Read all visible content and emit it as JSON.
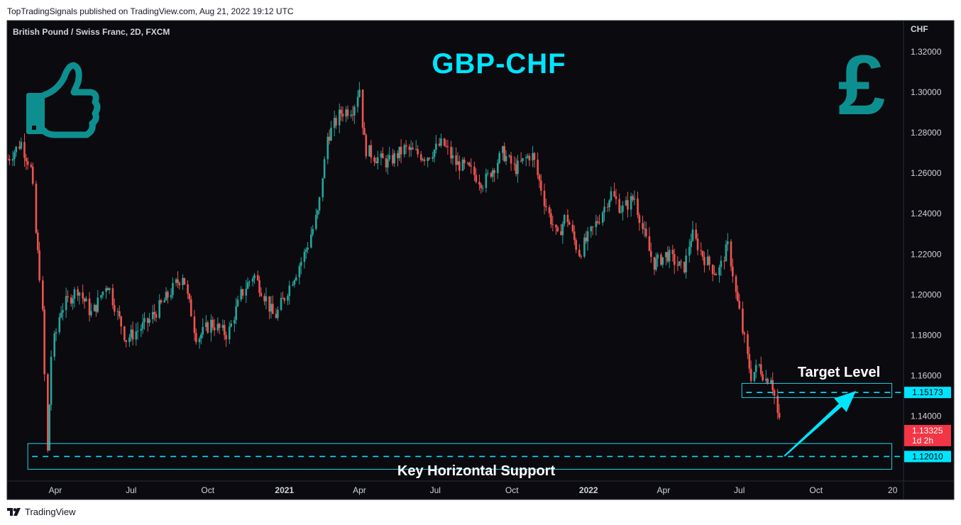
{
  "header": {
    "published": "TopTradingSignals published on TradingView.com, Aug 21, 2022 19:12 UTC"
  },
  "footer": {
    "brand": "TradingView"
  },
  "chart_data": {
    "type": "candlestick",
    "symbol": "British Pound / Swiss Franc, 2D, FXCM",
    "title": "GBP-CHF",
    "currency_axis": "CHF",
    "ylim": [
      1.108,
      1.335
    ],
    "y_ticks": [
      "1.32000",
      "1.30000",
      "1.28000",
      "1.26000",
      "1.24000",
      "1.22000",
      "1.20000",
      "1.18000",
      "1.16000",
      "1.14000"
    ],
    "x_ticks": [
      {
        "label": "Apr",
        "bold": false
      },
      {
        "label": "Jul",
        "bold": false
      },
      {
        "label": "Oct",
        "bold": false
      },
      {
        "label": "2021",
        "bold": true
      },
      {
        "label": "Apr",
        "bold": false
      },
      {
        "label": "Jul",
        "bold": false
      },
      {
        "label": "Oct",
        "bold": false
      },
      {
        "label": "2022",
        "bold": true
      },
      {
        "label": "Apr",
        "bold": false
      },
      {
        "label": "Jul",
        "bold": false
      },
      {
        "label": "Oct",
        "bold": false
      },
      {
        "label": "20",
        "bold": false
      }
    ],
    "x_tick_dates": [
      "2020-04-01",
      "2020-07-01",
      "2020-10-01",
      "2021-01-01",
      "2021-04-01",
      "2021-07-01",
      "2021-10-01",
      "2022-01-01",
      "2022-04-01",
      "2022-07-01",
      "2022-10-01",
      "2023-01-01"
    ],
    "x_range": [
      "2020-02-04",
      "2023-01-14"
    ],
    "price_path": [
      [
        "2020-02-04",
        1.267
      ],
      [
        "2020-02-20",
        1.275
      ],
      [
        "2020-03-03",
        1.262
      ],
      [
        "2020-03-10",
        1.225
      ],
      [
        "2020-03-17",
        1.19
      ],
      [
        "2020-03-20",
        1.145
      ],
      [
        "2020-03-23",
        1.122
      ],
      [
        "2020-03-27",
        1.17
      ],
      [
        "2020-04-08",
        1.193
      ],
      [
        "2020-04-28",
        1.203
      ],
      [
        "2020-05-15",
        1.19
      ],
      [
        "2020-06-02",
        1.206
      ],
      [
        "2020-06-25",
        1.178
      ],
      [
        "2020-07-20",
        1.186
      ],
      [
        "2020-08-10",
        1.197
      ],
      [
        "2020-09-01",
        1.21
      ],
      [
        "2020-09-18",
        1.178
      ],
      [
        "2020-10-05",
        1.186
      ],
      [
        "2020-10-25",
        1.18
      ],
      [
        "2020-11-10",
        1.2
      ],
      [
        "2020-11-25",
        1.21
      ],
      [
        "2020-12-10",
        1.198
      ],
      [
        "2020-12-20",
        1.188
      ],
      [
        "2021-01-10",
        1.207
      ],
      [
        "2021-01-25",
        1.22
      ],
      [
        "2021-02-10",
        1.24
      ],
      [
        "2021-02-22",
        1.278
      ],
      [
        "2021-03-10",
        1.29
      ],
      [
        "2021-03-24",
        1.292
      ],
      [
        "2021-04-01",
        1.302
      ],
      [
        "2021-04-08",
        1.272
      ],
      [
        "2021-04-20",
        1.268
      ],
      [
        "2021-05-05",
        1.265
      ],
      [
        "2021-05-25",
        1.272
      ],
      [
        "2021-06-20",
        1.268
      ],
      [
        "2021-07-10",
        1.275
      ],
      [
        "2021-07-25",
        1.265
      ],
      [
        "2021-08-10",
        1.262
      ],
      [
        "2021-08-28",
        1.255
      ],
      [
        "2021-09-20",
        1.27
      ],
      [
        "2021-10-05",
        1.262
      ],
      [
        "2021-10-25",
        1.27
      ],
      [
        "2021-11-10",
        1.245
      ],
      [
        "2021-11-25",
        1.228
      ],
      [
        "2021-12-05",
        1.24
      ],
      [
        "2021-12-20",
        1.22
      ],
      [
        "2022-01-10",
        1.235
      ],
      [
        "2022-01-28",
        1.25
      ],
      [
        "2022-02-10",
        1.242
      ],
      [
        "2022-02-25",
        1.248
      ],
      [
        "2022-03-10",
        1.228
      ],
      [
        "2022-03-20",
        1.215
      ],
      [
        "2022-04-05",
        1.22
      ],
      [
        "2022-04-25",
        1.212
      ],
      [
        "2022-05-05",
        1.23
      ],
      [
        "2022-05-20",
        1.218
      ],
      [
        "2022-06-05",
        1.21
      ],
      [
        "2022-06-18",
        1.225
      ],
      [
        "2022-06-25",
        1.205
      ],
      [
        "2022-07-05",
        1.182
      ],
      [
        "2022-07-15",
        1.16
      ],
      [
        "2022-07-25",
        1.165
      ],
      [
        "2022-08-01",
        1.158
      ],
      [
        "2022-08-08",
        1.16
      ],
      [
        "2022-08-14",
        1.145
      ],
      [
        "2022-08-20",
        1.133
      ]
    ],
    "last_price": {
      "value": "1.13325",
      "countdown": "1d 2h"
    },
    "levels": [
      {
        "name": "Target Level",
        "value": 1.15173,
        "label": "1.15173",
        "band": [
          1.1492,
          1.1562
        ],
        "x_start": "2022-07-04",
        "x_end": "2022-12-31"
      },
      {
        "name": "Key Horizontal Support",
        "value": 1.1201,
        "label": "1.12010",
        "band": [
          1.1138,
          1.1265
        ],
        "x_start": "2020-02-28",
        "x_end": "2022-12-31"
      }
    ],
    "arrow": {
      "from": [
        "2022-08-24",
        1.1203
      ],
      "to": [
        "2022-11-18",
        1.1525
      ]
    }
  },
  "colors": {
    "background": "#0a0a0f",
    "up": "#26a69a",
    "down": "#ef5350",
    "accent": "#00e5ff",
    "level_box": "#1fd3e6",
    "last_price_bg": "#f23645",
    "text": "#d1d4dc",
    "icon": "#0e8f8f"
  },
  "icons": {
    "left": "thumbs-up-icon",
    "right": "pound-sign-icon"
  }
}
